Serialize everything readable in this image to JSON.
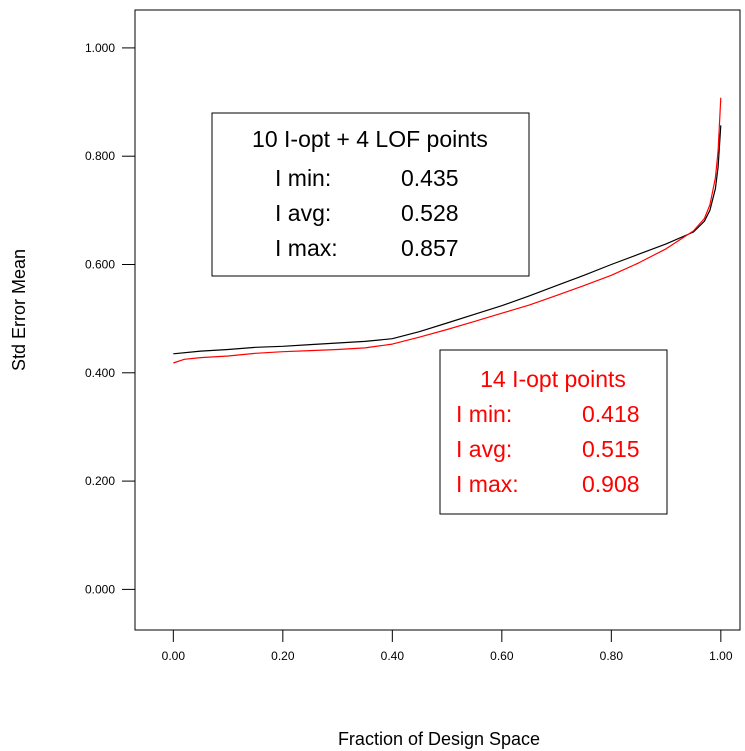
{
  "chart_data": {
    "type": "line",
    "xlabel": "Fraction of Design Space",
    "ylabel": "Std Error Mean",
    "xlim": [
      -0.07,
      1.035
    ],
    "ylim": [
      -0.075,
      1.07
    ],
    "x_ticks": [
      "0.00",
      "0.20",
      "0.40",
      "0.60",
      "0.80",
      "1.00"
    ],
    "y_ticks": [
      "0.000",
      "0.200",
      "0.400",
      "0.600",
      "0.800",
      "1.000"
    ],
    "grid": false,
    "series": [
      {
        "name": "10 I-opt + 4 LOF points",
        "color": "#000000",
        "x": [
          0.0,
          0.05,
          0.1,
          0.15,
          0.2,
          0.25,
          0.3,
          0.35,
          0.4,
          0.45,
          0.5,
          0.55,
          0.6,
          0.65,
          0.7,
          0.75,
          0.8,
          0.85,
          0.9,
          0.95,
          0.97,
          0.98,
          0.99,
          0.995,
          1.0
        ],
        "values": [
          0.435,
          0.44,
          0.443,
          0.447,
          0.449,
          0.452,
          0.455,
          0.458,
          0.463,
          0.476,
          0.492,
          0.508,
          0.524,
          0.542,
          0.561,
          0.58,
          0.6,
          0.619,
          0.638,
          0.66,
          0.68,
          0.7,
          0.74,
          0.78,
          0.857
        ]
      },
      {
        "name": "14 I-opt points",
        "color": "#ff0000",
        "x": [
          0.0,
          0.02,
          0.05,
          0.1,
          0.15,
          0.2,
          0.25,
          0.3,
          0.35,
          0.4,
          0.45,
          0.5,
          0.55,
          0.6,
          0.65,
          0.7,
          0.75,
          0.8,
          0.85,
          0.9,
          0.95,
          0.97,
          0.98,
          0.99,
          0.995,
          1.0
        ],
        "values": [
          0.418,
          0.425,
          0.428,
          0.431,
          0.436,
          0.439,
          0.441,
          0.443,
          0.446,
          0.453,
          0.466,
          0.48,
          0.495,
          0.51,
          0.525,
          0.543,
          0.561,
          0.58,
          0.603,
          0.629,
          0.662,
          0.685,
          0.71,
          0.76,
          0.81,
          0.908
        ]
      }
    ],
    "legends": [
      {
        "color": "#000000",
        "title": "10 I-opt + 4 LOF points",
        "rows": [
          {
            "label": "I min:",
            "value": "0.435"
          },
          {
            "label": "I avg:",
            "value": "0.528"
          },
          {
            "label": "I max:",
            "value": "0.857"
          }
        ]
      },
      {
        "color": "#ff0000",
        "title": "14 I-opt points",
        "rows": [
          {
            "label": "I min:",
            "value": "0.418"
          },
          {
            "label": "I avg:",
            "value": "0.515"
          },
          {
            "label": "I max:",
            "value": "0.908"
          }
        ]
      }
    ]
  }
}
